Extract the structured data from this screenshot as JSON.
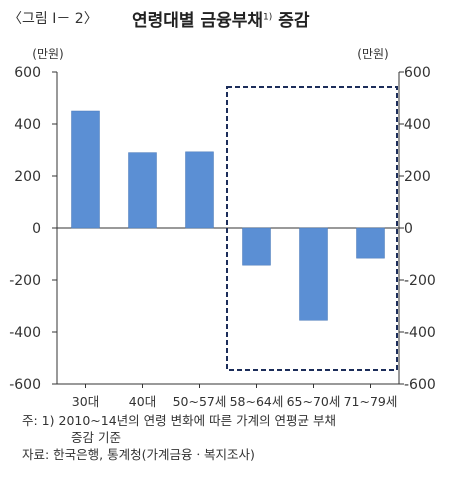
{
  "figure": {
    "label": "〈그림 Ⅰ－ 2〉",
    "title": "연령대별 금융부채",
    "title_note_mark": "1)",
    "title_suffix": " 증감"
  },
  "chart_data": {
    "type": "bar",
    "title": "연령대별 금융부채 증감",
    "categories": [
      "30대",
      "40대",
      "50~57세",
      "58~64세",
      "65~70세",
      "71~79세"
    ],
    "values": [
      450,
      290,
      293,
      -143,
      -355,
      -116
    ],
    "unit_left": "(만원)",
    "unit_right": "(만원)",
    "ylim": [
      -600,
      600
    ],
    "yticks": [
      600,
      400,
      200,
      0,
      -200,
      -400,
      -600
    ],
    "ytick_labels": [
      "600",
      "400",
      "200",
      "0",
      "-200",
      "-400",
      "-600"
    ],
    "bar_color": "#5b8fd4",
    "highlight": {
      "from_category": "58~64세",
      "to_category": "71~79세",
      "style": "dashed box",
      "color": "#1c2d5a"
    },
    "grid": false
  },
  "notes": {
    "line1": "주: 1) 2010~14년의 연령 변화에 따른 가계의 연평균 부채",
    "line2": "증감 기준",
    "line3": "자료: 한국은행, 통계청(가계금융ㆍ복지조사)"
  }
}
